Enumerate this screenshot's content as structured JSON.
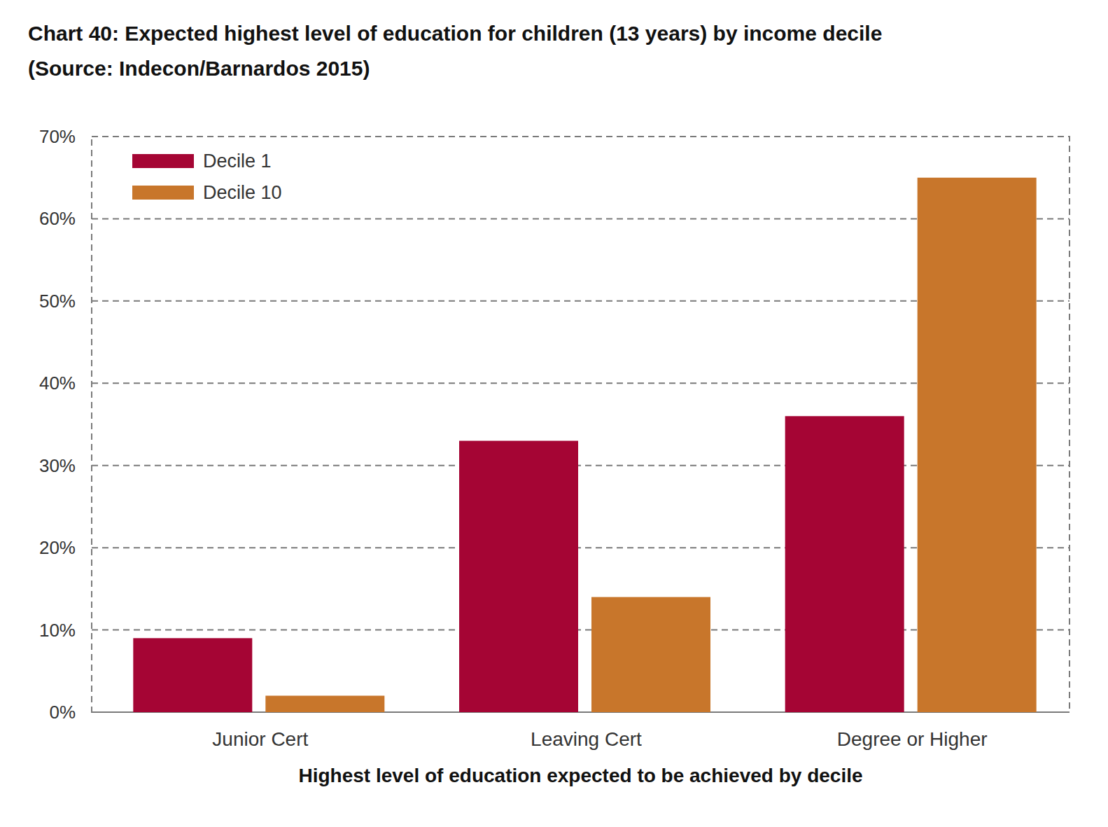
{
  "chart_data": {
    "type": "bar",
    "title": "Chart 40: Expected highest level of education for children (13 years) by income decile",
    "subtitle": "(Source: Indecon/Barnardos 2015)",
    "x_label": "Highest level of education expected to be achieved by decile",
    "categories": [
      "Junior Cert",
      "Leaving Cert",
      "Degree or Higher"
    ],
    "series": [
      {
        "name": "Decile 1",
        "color": "#a50534",
        "values": [
          9,
          33,
          36
        ]
      },
      {
        "name": "Decile 10",
        "color": "#c8762b",
        "values": [
          2,
          14,
          65
        ]
      }
    ],
    "ylim": [
      0,
      70
    ],
    "yticks": [
      {
        "value": 0,
        "label": "0%"
      },
      {
        "value": 10,
        "label": "10%"
      },
      {
        "value": 20,
        "label": "20%"
      },
      {
        "value": 30,
        "label": "30%"
      },
      {
        "value": 40,
        "label": "40%"
      },
      {
        "value": 50,
        "label": "50%"
      },
      {
        "value": 60,
        "label": "60%"
      },
      {
        "value": 70,
        "label": "70%"
      }
    ],
    "grid": true,
    "legend": "top-left"
  }
}
